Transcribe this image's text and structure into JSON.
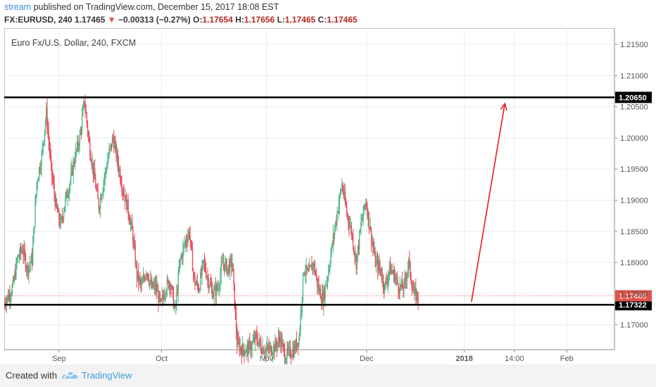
{
  "header": {
    "user": "stream",
    "published": " published on TradingView.com, December 15, 2017 18:08 EST"
  },
  "quote": {
    "symbol": "FX:EURUSD, 240",
    "last": "1.17465",
    "arrow": "▼",
    "change": "−0.00313 (−0.27%)",
    "o_label": "O:",
    "o": "1.17654",
    "h_label": "H:",
    "h": "1.17656",
    "l_label": "L:",
    "l": "1.17465",
    "c_label": "C:",
    "c": "1.17465"
  },
  "footer": {
    "created": "Created with",
    "brand": "TradingView"
  },
  "colors": {
    "up": "#53b987",
    "down": "#eb4d5c",
    "arrow": "#e81b1b",
    "level": "#000000",
    "price": "#e0534a"
  },
  "chart_data": {
    "type": "candlestick",
    "title": "Euro Fx/U.S. Dollar, 240, FXCM",
    "ylim": [
      1.166,
      1.2175
    ],
    "y_ticks": [
      "1.21500",
      "1.21000",
      "1.20500",
      "1.20000",
      "1.19500",
      "1.19000",
      "1.18500",
      "1.18000",
      "1.17500",
      "1.17000"
    ],
    "y_tick_values": [
      1.215,
      1.21,
      1.205,
      1.2,
      1.195,
      1.19,
      1.185,
      1.18,
      1.175,
      1.17
    ],
    "x_ticks": [
      "Sep",
      "Oct",
      "Nov",
      "Dec",
      "2018",
      "14:00",
      "Feb"
    ],
    "x_tick_index": [
      11.5,
      33,
      55,
      76,
      96.5,
      107,
      118
    ],
    "x_range": [
      0,
      128
    ],
    "price_path_daily_closes": [
      1.1735,
      1.1745,
      1.1762,
      1.1808,
      1.1822,
      1.179,
      1.1805,
      1.193,
      1.197,
      1.204,
      1.195,
      1.189,
      1.186,
      1.19,
      1.193,
      1.197,
      1.2,
      1.206,
      1.199,
      1.194,
      1.189,
      1.193,
      1.197,
      1.2,
      1.196,
      1.192,
      1.189,
      1.185,
      1.178,
      1.176,
      1.179,
      1.176,
      1.176,
      1.173,
      1.176,
      1.177,
      1.172,
      1.18,
      1.183,
      1.185,
      1.177,
      1.176,
      1.18,
      1.177,
      1.175,
      1.176,
      1.18,
      1.179,
      1.18,
      1.167,
      1.166,
      1.166,
      1.1665,
      1.168,
      1.1665,
      1.166,
      1.166,
      1.1665,
      1.168,
      1.165,
      1.1655,
      1.166,
      1.168,
      1.179,
      1.178,
      1.18,
      1.176,
      1.174,
      1.178,
      1.183,
      1.188,
      1.1925,
      1.188,
      1.185,
      1.18,
      1.186,
      1.19,
      1.185,
      1.18,
      1.179,
      1.176,
      1.179,
      1.178,
      1.176,
      1.176,
      1.18,
      1.175,
      1.17465
    ],
    "levels": [
      {
        "label": "1.20650",
        "value": 1.2065
      },
      {
        "label": "1.17322",
        "value": 1.17322
      }
    ],
    "last_price": {
      "label": "1.17465",
      "value": 1.17465
    },
    "arrow": {
      "from": {
        "x": 98,
        "y": 1.1737
      },
      "to": {
        "x": 105,
        "y": 1.2055
      }
    }
  }
}
